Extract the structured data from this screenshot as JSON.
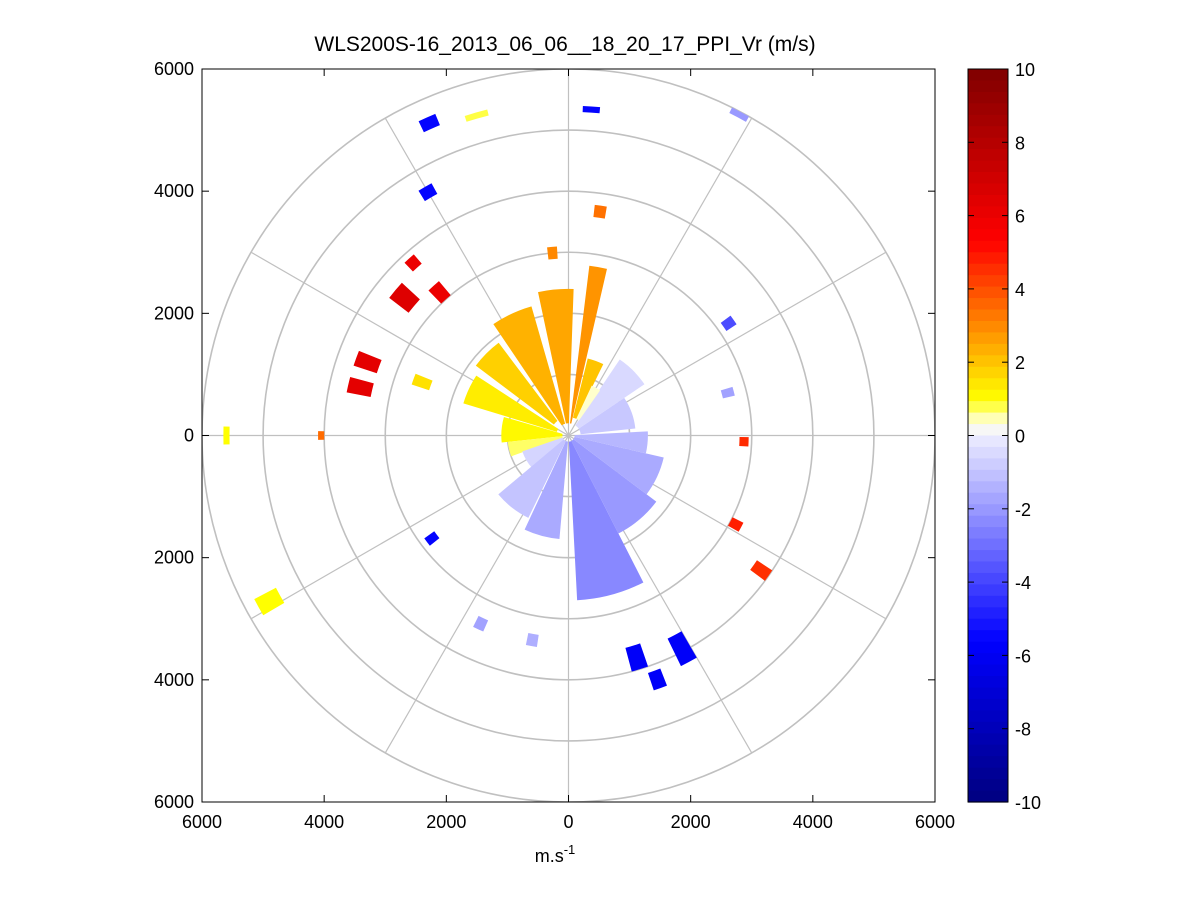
{
  "chart_data": {
    "type": "heatmap",
    "title": "WLS200S-16_2013_06_06__18_20_17_PPI_Vr (m/s)",
    "xlabel_base": "m.s",
    "xlabel_exp": "-1",
    "xlim": [
      -6000,
      6000
    ],
    "ylim": [
      -6000,
      6000
    ],
    "x_tick_labels": [
      "6000",
      "4000",
      "2000",
      "0",
      "2000",
      "4000",
      "6000"
    ],
    "y_tick_labels": [
      "6000",
      "4000",
      "2000",
      "0",
      "2000",
      "4000",
      "6000"
    ],
    "range_rings": [
      1000,
      2000,
      3000,
      4000,
      5000,
      6000
    ],
    "spokes_deg": [
      0,
      30,
      60,
      90,
      120,
      150
    ],
    "grid": true,
    "colorbar": {
      "position": "right",
      "range": [
        -10,
        10
      ],
      "tick_labels": [
        "10",
        "8",
        "6",
        "4",
        "2",
        "0",
        "-2",
        "-4",
        "-6",
        "-8",
        "-10"
      ],
      "stops": [
        {
          "v": -10,
          "color": "#00007f"
        },
        {
          "v": -5.6,
          "color": "#0000ff"
        },
        {
          "v": 0,
          "color": "#eeeeff"
        },
        {
          "v": 0.3,
          "color": "#ffffee"
        },
        {
          "v": 1,
          "color": "#ffff00"
        },
        {
          "v": 5.3,
          "color": "#ff0000"
        },
        {
          "v": 10,
          "color": "#7f0000"
        }
      ]
    },
    "velocity_blobs": [
      {
        "az": 355,
        "r0": 200,
        "r1": 2400,
        "w": 14,
        "v": 2.5
      },
      {
        "az": 10,
        "r0": 200,
        "r1": 2800,
        "w": 6,
        "v": 2.8
      },
      {
        "az": 20,
        "r0": 300,
        "r1": 1300,
        "w": 12,
        "v": 2.0
      },
      {
        "az": 335,
        "r0": 200,
        "r1": 2200,
        "w": 18,
        "v": 2.3
      },
      {
        "az": 315,
        "r0": 300,
        "r1": 1900,
        "w": 16,
        "v": 1.8
      },
      {
        "az": 295,
        "r0": 200,
        "r1": 1800,
        "w": 16,
        "v": 1.3
      },
      {
        "az": 275,
        "r0": 100,
        "r1": 1100,
        "w": 22,
        "v": 1.1
      },
      {
        "az": 257,
        "r0": 100,
        "r1": 1000,
        "w": 14,
        "v": 0.7
      },
      {
        "az": 240,
        "r0": 100,
        "r1": 800,
        "w": 22,
        "v": -0.6
      },
      {
        "az": 218,
        "r0": 100,
        "r1": 1500,
        "w": 24,
        "v": -1.0
      },
      {
        "az": 195,
        "r0": 100,
        "r1": 1700,
        "w": 20,
        "v": -1.6
      },
      {
        "az": 165,
        "r0": 100,
        "r1": 2700,
        "w": 24,
        "v": -2.4
      },
      {
        "az": 140,
        "r0": 100,
        "r1": 1800,
        "w": 26,
        "v": -2.0
      },
      {
        "az": 115,
        "r0": 100,
        "r1": 1600,
        "w": 24,
        "v": -1.6
      },
      {
        "az": 95,
        "r0": 100,
        "r1": 1300,
        "w": 16,
        "v": -1.3
      },
      {
        "az": 70,
        "r0": 200,
        "r1": 1100,
        "w": 28,
        "v": -0.9
      },
      {
        "az": 45,
        "r0": 200,
        "r1": 1500,
        "w": 22,
        "v": -0.5
      },
      {
        "az": 30,
        "r0": 300,
        "r1": 900,
        "w": 10,
        "v": 0.4
      },
      {
        "az": 355,
        "r0": 2900,
        "r1": 3100,
        "w": 3,
        "v": 3.0
      },
      {
        "az": 8,
        "r0": 3600,
        "r1": 3800,
        "w": 3,
        "v": 3.4
      },
      {
        "az": 4,
        "r0": 5300,
        "r1": 5400,
        "w": 3,
        "v": -5.5
      },
      {
        "az": 28,
        "r0": 5900,
        "r1": 6000,
        "w": 3,
        "v": -2.0
      },
      {
        "az": 344,
        "r0": 5400,
        "r1": 5500,
        "w": 4,
        "v": 0.8
      },
      {
        "az": 336,
        "r0": 5500,
        "r1": 5700,
        "w": 3,
        "v": -5.5
      },
      {
        "az": 330,
        "r0": 4500,
        "r1": 4700,
        "w": 3,
        "v": -5.5
      },
      {
        "az": 318,
        "r0": 3700,
        "r1": 3900,
        "w": 3,
        "v": 6.0
      },
      {
        "az": 310,
        "r0": 3300,
        "r1": 3700,
        "w": 5,
        "v": 6.5
      },
      {
        "az": 318,
        "r0": 3000,
        "r1": 3300,
        "w": 4,
        "v": 6.0
      },
      {
        "az": 290,
        "r0": 3300,
        "r1": 3700,
        "w": 4,
        "v": 6.3
      },
      {
        "az": 283,
        "r0": 3300,
        "r1": 3700,
        "w": 4,
        "v": 6.3
      },
      {
        "az": 290,
        "r0": 2400,
        "r1": 2700,
        "w": 4,
        "v": 1.5
      },
      {
        "az": 270,
        "r0": 5550,
        "r1": 5650,
        "w": 3,
        "v": 1.0
      },
      {
        "az": 270,
        "r0": 4000,
        "r1": 4100,
        "w": 2,
        "v": 3.5
      },
      {
        "az": 241,
        "r0": 5400,
        "r1": 5800,
        "w": 3,
        "v": 1.0
      },
      {
        "az": 233,
        "r0": 2700,
        "r1": 2900,
        "w": 3,
        "v": -5.5
      },
      {
        "az": 205,
        "r0": 3300,
        "r1": 3500,
        "w": 3,
        "v": -1.8
      },
      {
        "az": 190,
        "r0": 3300,
        "r1": 3500,
        "w": 3,
        "v": -1.5
      },
      {
        "az": 163,
        "r0": 3600,
        "r1": 4000,
        "w": 4,
        "v": -5.8
      },
      {
        "az": 160,
        "r0": 4100,
        "r1": 4400,
        "w": 3,
        "v": -5.8
      },
      {
        "az": 152,
        "r0": 3700,
        "r1": 4200,
        "w": 4,
        "v": -5.8
      },
      {
        "az": 125,
        "r0": 3700,
        "r1": 4000,
        "w": 3,
        "v": 4.5
      },
      {
        "az": 118,
        "r0": 3000,
        "r1": 3200,
        "w": 3,
        "v": 4.8
      },
      {
        "az": 92,
        "r0": 2800,
        "r1": 2950,
        "w": 3,
        "v": 4.6
      },
      {
        "az": 75,
        "r0": 2600,
        "r1": 2800,
        "w": 3,
        "v": -1.8
      },
      {
        "az": 55,
        "r0": 3100,
        "r1": 3300,
        "w": 3,
        "v": -3.8
      }
    ]
  }
}
